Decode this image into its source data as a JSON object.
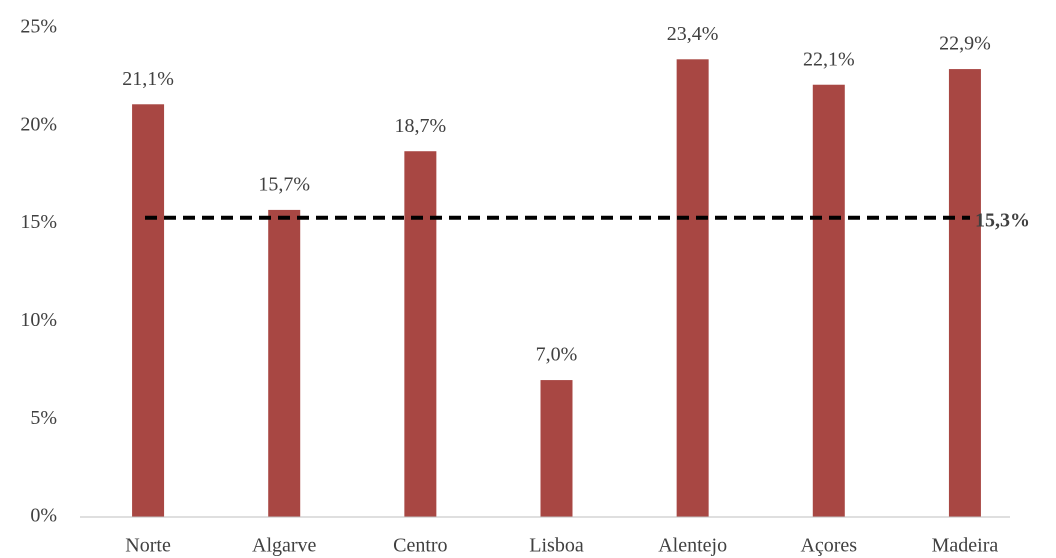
{
  "chart_data": {
    "type": "bar",
    "categories": [
      "Norte",
      "Algarve",
      "Centro",
      "Lisboa",
      "Alentejo",
      "Açores",
      "Madeira"
    ],
    "values": [
      21.1,
      15.7,
      18.7,
      7.0,
      23.4,
      22.1,
      22.9
    ],
    "value_labels": [
      "21,1%",
      "15,7%",
      "18,7%",
      "7,0%",
      "23,4%",
      "22,1%",
      "22,9%"
    ],
    "color": "#a84743",
    "ylim": [
      0,
      25
    ],
    "yticks": [
      {
        "value": 0,
        "label": "0%"
      },
      {
        "value": 5,
        "label": "5%"
      },
      {
        "value": 10,
        "label": "10%"
      },
      {
        "value": 15,
        "label": "15%"
      },
      {
        "value": 20,
        "label": "20%"
      },
      {
        "value": 25,
        "label": "25%"
      }
    ],
    "grid": false,
    "reference_line": {
      "value": 15.3,
      "label": "15,3%",
      "color": "#000000"
    }
  }
}
